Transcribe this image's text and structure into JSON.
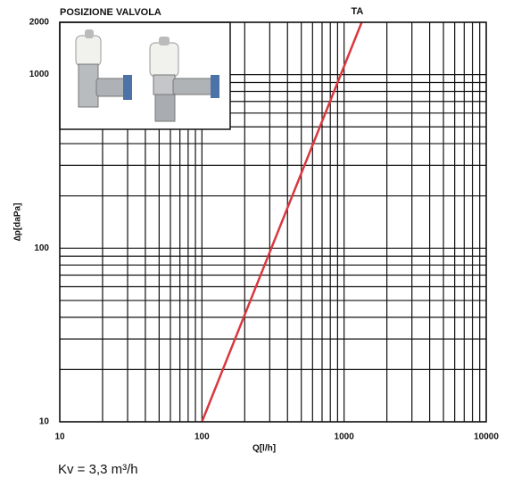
{
  "chart_data": {
    "type": "line",
    "title": "POSIZIONE VALVOLA",
    "x_label": "Q[l/h]",
    "y_label": "∆p[daPa]",
    "log_x": true,
    "log_y": true,
    "xlim": [
      10,
      10000
    ],
    "ylim": [
      10,
      2000
    ],
    "xticks": [
      10,
      100,
      1000,
      10000
    ],
    "yticks": [
      10,
      100,
      1000,
      2000
    ],
    "xgrid": [
      20,
      30,
      40,
      50,
      60,
      70,
      80,
      90,
      200,
      300,
      400,
      500,
      600,
      700,
      800,
      900,
      2000,
      3000,
      4000,
      5000,
      6000,
      7000,
      8000,
      9000
    ],
    "ygrid": [
      20,
      30,
      40,
      50,
      60,
      70,
      80,
      90,
      200,
      300,
      400,
      500,
      600,
      700,
      800,
      900
    ],
    "series": [
      {
        "name": "TA",
        "color": "#d9383e",
        "x": [
          100,
          1330
        ],
        "values": [
          10,
          2000
        ]
      }
    ],
    "note": "Kv = 3,3 m³/h"
  }
}
